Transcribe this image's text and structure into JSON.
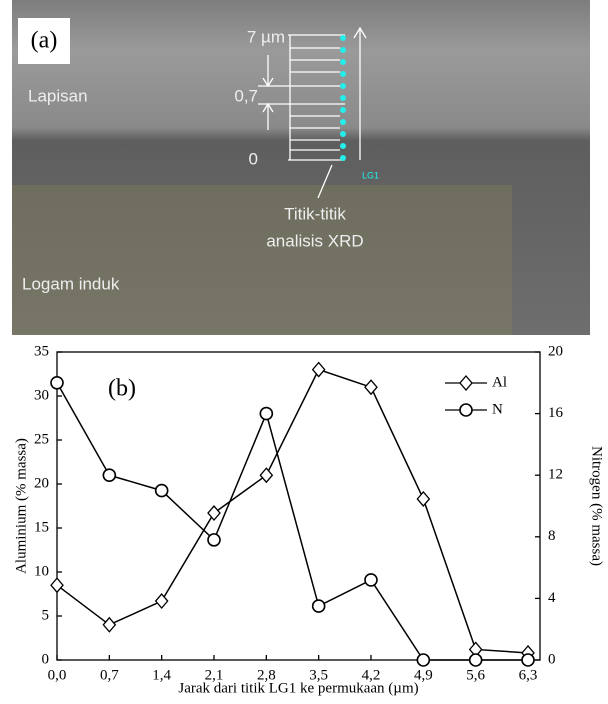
{
  "image_a": {
    "panel_label": "(a)",
    "scale_labels": [
      "7 µm",
      "0,7",
      "0"
    ],
    "layer_label": "Lapisan",
    "point_label": "LG1",
    "annotation": [
      "Titik-titik",
      "analisis XRD"
    ],
    "substrate_label": "Logam induk"
  },
  "chart_data": {
    "type": "line",
    "panel_label": "(b)",
    "x_label": "Jarak dari titik LG1 ke permukaan (µm)",
    "y_label": "Aluminium (% massa)",
    "y2_label": "Nitrogen (% massa)",
    "categories": [
      "0,0",
      "0,7",
      "1,4",
      "2,1",
      "2,8",
      "3,5",
      "4,2",
      "4,9",
      "5,6",
      "6,3"
    ],
    "series": [
      {
        "name": "Al",
        "color": "#000000",
        "marker": "diamond",
        "values": [
          8.5,
          4,
          6.7,
          16.7,
          21,
          33,
          31,
          18.3,
          1.2,
          0.8
        ]
      },
      {
        "name": "N",
        "color": "#000000",
        "marker": "circle",
        "axis": "y2",
        "values": [
          18,
          12,
          11,
          7.8,
          16,
          3.5,
          5.2,
          0,
          0,
          0
        ]
      }
    ],
    "ylim": [
      0,
      35
    ],
    "yticks": [
      0,
      5,
      10,
      15,
      20,
      25,
      30,
      35
    ],
    "y2lim": [
      0,
      20
    ],
    "y2ticks": [
      0,
      4,
      8,
      12,
      16,
      20
    ],
    "legend": "upper right",
    "grid": false
  }
}
